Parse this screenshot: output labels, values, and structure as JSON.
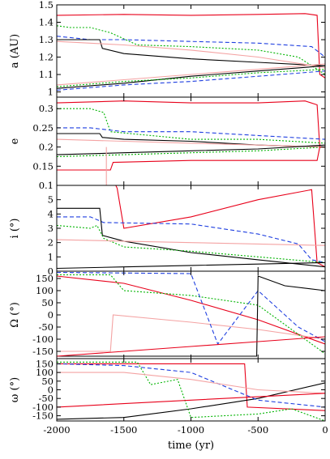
{
  "chart_data": {
    "type": "line",
    "xlabel": "time (yr)",
    "xlim": [
      -2000,
      0
    ],
    "xticks": [
      -2000,
      -1500,
      -1000,
      -500,
      0
    ],
    "colors": {
      "black": "#000000",
      "red": "#e8001a",
      "green": "#00b400",
      "blue": "#1f3fe0",
      "pink": "#f4a3a3"
    },
    "panels": [
      {
        "ylabel": "a (AU)",
        "ylim": [
          0.97,
          1.5
        ],
        "yticks": [
          1.0,
          1.1,
          1.2,
          1.3,
          1.4,
          1.5
        ],
        "series": [
          {
            "color": "red",
            "dash": "",
            "x": [
              -2000,
              -1500,
              -1000,
              -500,
              -150,
              -60,
              -40,
              0
            ],
            "y": [
              1.44,
              1.445,
              1.44,
              1.445,
              1.45,
              1.44,
              1.1,
              1.08
            ]
          },
          {
            "color": "green",
            "dash": "2,2",
            "x": [
              -2000,
              -1900,
              -1750,
              -1600,
              -1400,
              -1000,
              -500,
              -200,
              0
            ],
            "y": [
              1.38,
              1.37,
              1.37,
              1.34,
              1.27,
              1.26,
              1.24,
              1.2,
              1.1
            ]
          },
          {
            "color": "blue",
            "dash": "5,3",
            "x": [
              -2000,
              -1750,
              -1500,
              -1000,
              -500,
              -100,
              0
            ],
            "y": [
              1.32,
              1.3,
              1.3,
              1.29,
              1.28,
              1.26,
              1.2
            ]
          },
          {
            "color": "black",
            "dash": "",
            "x": [
              -2000,
              -1680,
              -1660,
              -1500,
              -1000,
              -500,
              0
            ],
            "y": [
              1.3,
              1.3,
              1.25,
              1.22,
              1.19,
              1.17,
              1.15
            ]
          },
          {
            "color": "pink",
            "dash": "",
            "x": [
              -2000,
              -1500,
              -1000,
              -500,
              0
            ],
            "y": [
              1.29,
              1.27,
              1.24,
              1.2,
              1.14
            ]
          },
          {
            "color": "black",
            "dash": "",
            "x": [
              -2000,
              -1500,
              -1000,
              -500,
              0
            ],
            "y": [
              1.02,
              1.05,
              1.09,
              1.12,
              1.15
            ]
          },
          {
            "color": "green",
            "dash": "2,2",
            "x": [
              -2000,
              -1500,
              -1000,
              -500,
              0
            ],
            "y": [
              1.03,
              1.06,
              1.08,
              1.11,
              1.13
            ]
          },
          {
            "color": "pink",
            "dash": "",
            "x": [
              -2000,
              -1500,
              -1000,
              -500,
              0
            ],
            "y": [
              1.04,
              1.07,
              1.1,
              1.13,
              1.16
            ]
          },
          {
            "color": "blue",
            "dash": "5,3",
            "x": [
              -2000,
              -1500,
              -1000,
              -500,
              0
            ],
            "y": [
              1.01,
              1.04,
              1.06,
              1.09,
              1.12
            ]
          }
        ]
      },
      {
        "ylabel": "e",
        "ylim": [
          0.1,
          0.33
        ],
        "yticks": [
          0.1,
          0.15,
          0.2,
          0.25,
          0.3
        ],
        "series": [
          {
            "color": "red",
            "dash": "",
            "x": [
              -2000,
              -1500,
              -1000,
              -500,
              -150,
              -60,
              -40,
              0
            ],
            "y": [
              0.315,
              0.32,
              0.315,
              0.315,
              0.32,
              0.31,
              0.2,
              0.2
            ]
          },
          {
            "color": "green",
            "dash": "2,2",
            "x": [
              -2000,
              -1750,
              -1650,
              -1600,
              -1000,
              -500,
              0
            ],
            "y": [
              0.3,
              0.3,
              0.29,
              0.24,
              0.22,
              0.22,
              0.21
            ]
          },
          {
            "color": "blue",
            "dash": "5,3",
            "x": [
              -2000,
              -1750,
              -1500,
              -1000,
              -500,
              0
            ],
            "y": [
              0.25,
              0.25,
              0.24,
              0.24,
              0.23,
              0.22
            ]
          },
          {
            "color": "black",
            "dash": "",
            "x": [
              -2000,
              -1680,
              -1660,
              -1500,
              -1000,
              -500,
              0
            ],
            "y": [
              0.235,
              0.235,
              0.225,
              0.22,
              0.215,
              0.205,
              0.2
            ]
          },
          {
            "color": "pink",
            "dash": "",
            "x": [
              -2000,
              -1500,
              -1000,
              -500,
              0
            ],
            "y": [
              0.22,
              0.215,
              0.21,
              0.205,
              0.2
            ]
          },
          {
            "color": "black",
            "dash": "",
            "x": [
              -2000,
              -1500,
              -1000,
              -500,
              0
            ],
            "y": [
              0.18,
              0.185,
              0.19,
              0.195,
              0.205
            ]
          },
          {
            "color": "green",
            "dash": "2,2",
            "x": [
              -2000,
              -1500,
              -1000,
              -500,
              0
            ],
            "y": [
              0.175,
              0.18,
              0.185,
              0.19,
              0.2
            ]
          },
          {
            "color": "red",
            "dash": "",
            "x": [
              -2000,
              -1600,
              -1580,
              -1000,
              -500,
              -60,
              -40,
              0
            ],
            "y": [
              0.14,
              0.14,
              0.16,
              0.165,
              0.165,
              0.165,
              0.2,
              0.2
            ]
          },
          {
            "color": "pink",
            "dash": "",
            "x": [
              -1630,
              -1630,
              -1620
            ],
            "y": [
              0.2,
              0.1,
              0.1
            ]
          }
        ]
      },
      {
        "ylabel": "i (°)",
        "ylim": [
          0,
          6
        ],
        "yticks": [
          0,
          1,
          2,
          3,
          4,
          5
        ],
        "series": [
          {
            "color": "red",
            "dash": "",
            "x": [
              -2000,
              -1560,
              -1550,
              -1500,
              -1000,
              -500,
              -100,
              -60,
              0
            ],
            "y": [
              6.0,
              6.0,
              5.8,
              3.0,
              3.8,
              5.0,
              5.7,
              0.6,
              0.3
            ]
          },
          {
            "color": "blue",
            "dash": "5,3",
            "x": [
              -2000,
              -1750,
              -1650,
              -1000,
              -500,
              -200,
              -100,
              0
            ],
            "y": [
              3.8,
              3.8,
              3.4,
              3.3,
              2.6,
              1.9,
              0.8,
              0.6
            ]
          },
          {
            "color": "black",
            "dash": "",
            "x": [
              -2000,
              -1680,
              -1660,
              -1500,
              -1000,
              -500,
              0
            ],
            "y": [
              4.4,
              4.4,
              2.5,
              2.1,
              1.3,
              0.8,
              0.3
            ]
          },
          {
            "color": "green",
            "dash": "2,2",
            "x": [
              -2000,
              -1750,
              -1700,
              -1650,
              -1500,
              -1000,
              -500,
              0
            ],
            "y": [
              3.2,
              3.0,
              3.2,
              2.3,
              1.7,
              1.4,
              1.0,
              0.6
            ]
          },
          {
            "color": "pink",
            "dash": "",
            "x": [
              -2000,
              -1500,
              -1000,
              -500,
              0
            ],
            "y": [
              2.2,
              2.1,
              2.0,
              1.9,
              1.8
            ]
          },
          {
            "color": "black",
            "dash": "",
            "x": [
              -2000,
              -1500,
              -1000,
              -500,
              0
            ],
            "y": [
              0.2,
              0.3,
              0.4,
              0.5,
              0.6
            ]
          }
        ]
      },
      {
        "ylabel": "Ω (°)",
        "ylim": [
          -180,
          180
        ],
        "yticks": [
          -150,
          -100,
          -50,
          0,
          50,
          100,
          150
        ],
        "series": [
          {
            "color": "red",
            "dash": "",
            "x": [
              -2000,
              -1500,
              -1000,
              -500,
              0
            ],
            "y": [
              160,
              130,
              60,
              -20,
              -120
            ]
          },
          {
            "color": "pink",
            "dash": "",
            "x": [
              -2000,
              -1800,
              -1600,
              -1580,
              -1000,
              -500,
              0
            ],
            "y": [
              -150,
              -150,
              -150,
              0,
              -30,
              -60,
              -100
            ]
          },
          {
            "color": "green",
            "dash": "2,2",
            "x": [
              -2000,
              -1600,
              -1500,
              -1000,
              -500,
              -250,
              0
            ],
            "y": [
              165,
              165,
              100,
              80,
              40,
              -60,
              -160
            ]
          },
          {
            "color": "blue",
            "dash": "5,3",
            "x": [
              -2000,
              -1000,
              -800,
              -500,
              -200,
              0
            ],
            "y": [
              175,
              170,
              -120,
              100,
              -50,
              -110
            ]
          },
          {
            "color": "black",
            "dash": "",
            "x": [
              -2000,
              -1000,
              -510,
              -500,
              -300,
              0
            ],
            "y": [
              -170,
              -170,
              -170,
              160,
              120,
              100
            ]
          },
          {
            "color": "red",
            "dash": "",
            "x": [
              -2000,
              -1500,
              -1000,
              -500,
              0
            ],
            "y": [
              -170,
              -150,
              -130,
              -110,
              -90
            ]
          }
        ]
      },
      {
        "ylabel": "ω (°)",
        "ylim": [
          -180,
          180
        ],
        "yticks": [
          -150,
          -100,
          -50,
          0,
          50,
          100,
          150
        ],
        "series": [
          {
            "color": "red",
            "dash": "",
            "x": [
              -2000,
              -1500,
              -1000,
              -600,
              -580,
              0
            ],
            "y": [
              150,
              150,
              150,
              150,
              -100,
              -120
            ]
          },
          {
            "color": "black",
            "dash": "",
            "x": [
              -2000,
              -1500,
              -1000,
              -500,
              0
            ],
            "y": [
              -170,
              -160,
              -110,
              -50,
              40
            ]
          },
          {
            "color": "green",
            "dash": "2,2",
            "x": [
              -2000,
              -1400,
              -1300,
              -1100,
              -1000,
              -500,
              -250,
              0
            ],
            "y": [
              160,
              160,
              30,
              60,
              -160,
              -140,
              -110,
              -180
            ]
          },
          {
            "color": "blue",
            "dash": "5,3",
            "x": [
              -2000,
              -1500,
              -1000,
              -500,
              0
            ],
            "y": [
              150,
              140,
              100,
              -60,
              -100
            ]
          },
          {
            "color": "pink",
            "dash": "",
            "x": [
              -2000,
              -1500,
              -1000,
              -500,
              0
            ],
            "y": [
              100,
              100,
              60,
              0,
              -20
            ]
          },
          {
            "color": "red",
            "dash": "",
            "x": [
              -2000,
              -1500,
              -1000,
              -500,
              0
            ],
            "y": [
              -100,
              -80,
              -60,
              -40,
              -20
            ]
          }
        ]
      }
    ]
  }
}
